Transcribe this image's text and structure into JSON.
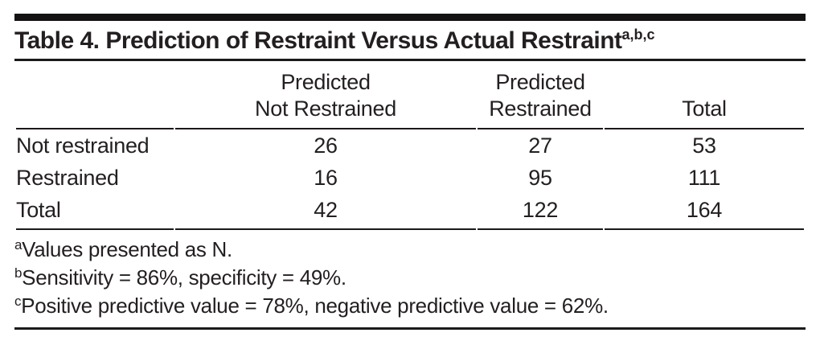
{
  "title": {
    "text": "Table 4. Prediction of Restraint Versus Actual Restraint",
    "superscript": "a,b,c"
  },
  "table": {
    "headers": [
      {
        "line1": "",
        "line2": ""
      },
      {
        "line1": "Predicted",
        "line2": "Not Restrained"
      },
      {
        "line1": "Predicted",
        "line2": "Restrained"
      },
      {
        "line1": "",
        "line2": "Total"
      }
    ],
    "rows": [
      {
        "label": "Not restrained",
        "values": [
          "26",
          "27",
          "53"
        ]
      },
      {
        "label": "Restrained",
        "values": [
          "16",
          "95",
          "111"
        ]
      },
      {
        "label": "Total",
        "values": [
          "42",
          "122",
          "164"
        ]
      }
    ]
  },
  "footnotes": [
    {
      "marker": "a",
      "text": "Values presented as N."
    },
    {
      "marker": "b",
      "text": "Sensitivity = 86%, specificity = 49%."
    },
    {
      "marker": "c",
      "text": "Positive predictive value = 78%, negative predictive value = 62%."
    }
  ],
  "colors": {
    "text": "#231f20",
    "rule": "#1c191a",
    "top_bar": "#141213",
    "background": "#ffffff"
  }
}
